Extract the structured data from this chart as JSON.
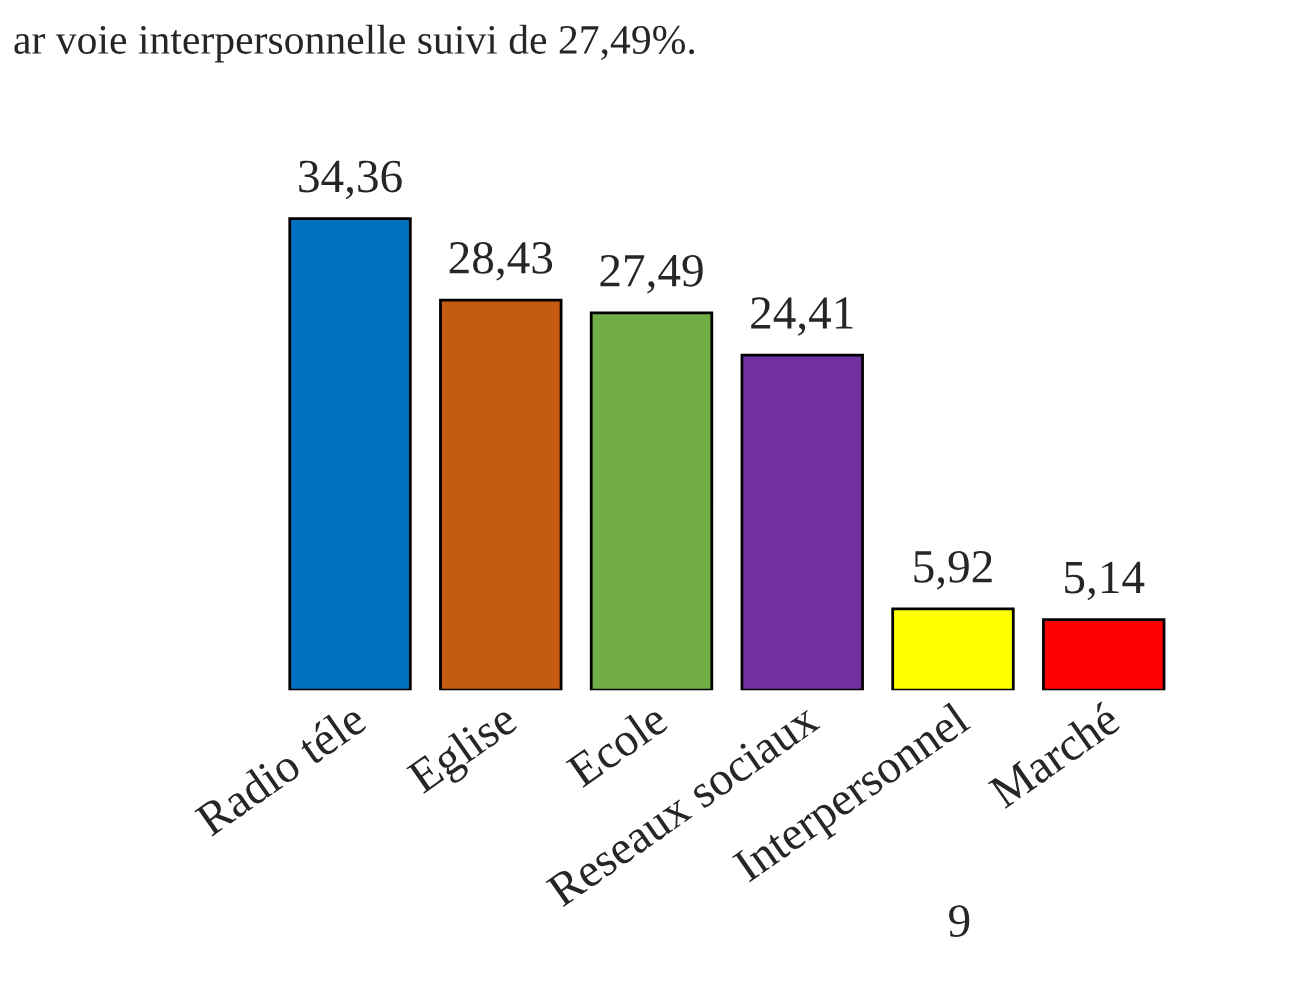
{
  "chart_data": {
    "type": "bar",
    "categories": [
      "Radio téle",
      "Eglise",
      "Ecole",
      "Reseaux sociaux",
      "Interpersonnel",
      "Marché"
    ],
    "values": [
      34.36,
      28.43,
      27.49,
      24.41,
      5.92,
      5.14
    ],
    "colors": [
      "#0070c0",
      "#c55a11",
      "#70ad47",
      "#7030a0",
      "#ffff00",
      "#ff0000"
    ],
    "value_labels": [
      "34,36",
      "28,43",
      "27,49",
      "24,41",
      "5,92",
      "5,14"
    ],
    "annotations": [
      "ar voie interpersonnelle suivi de 27,49%.",
      "9"
    ]
  }
}
